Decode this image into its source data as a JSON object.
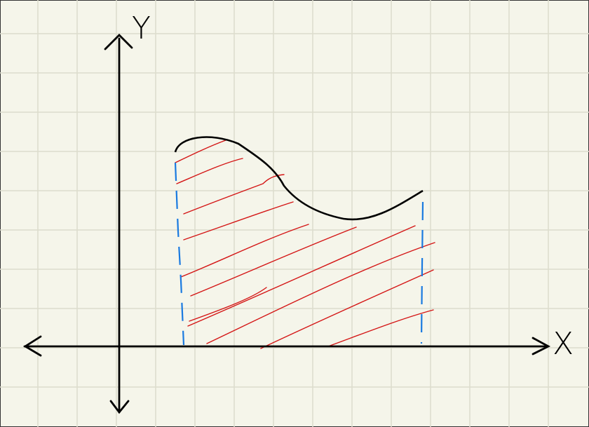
{
  "axes": {
    "y_label": "Y",
    "x_label": "X"
  }
}
